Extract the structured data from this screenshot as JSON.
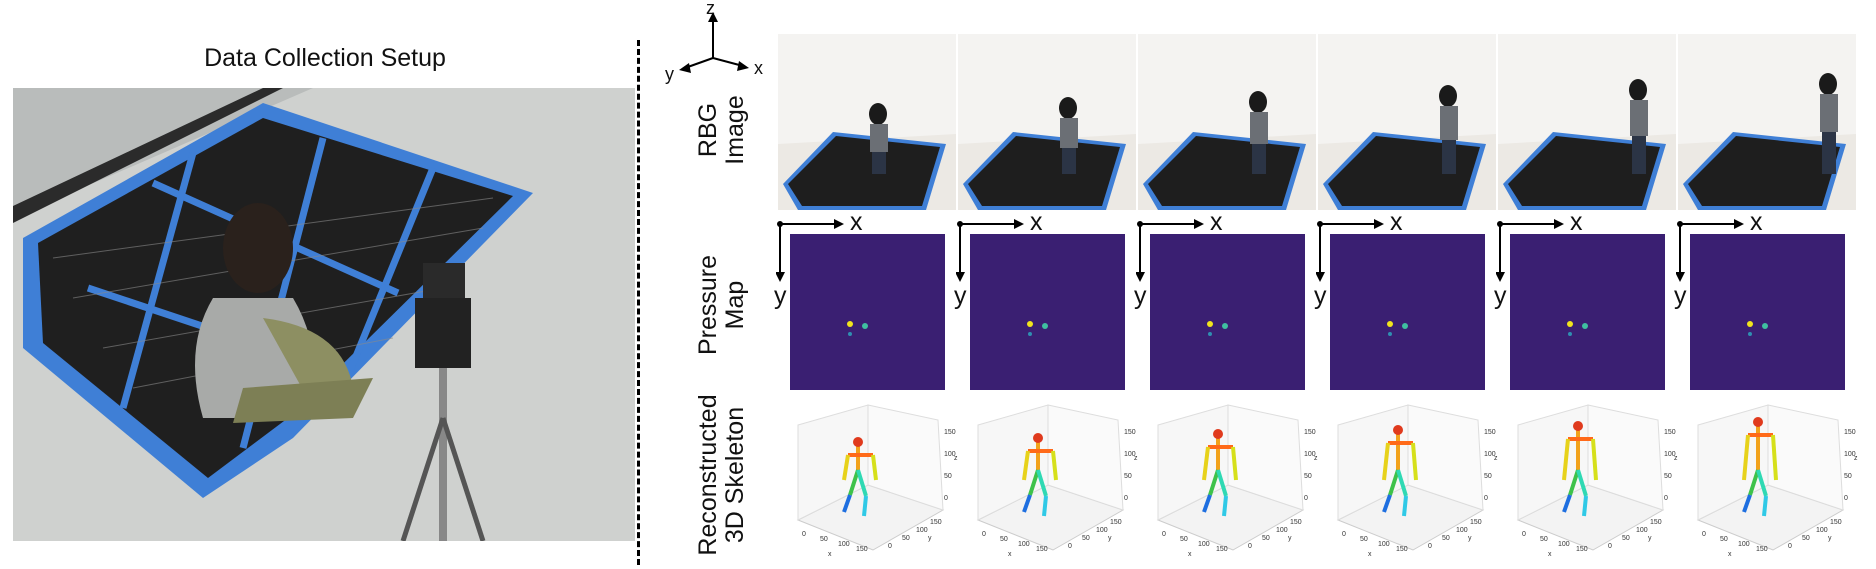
{
  "figure": {
    "left_title": "Data Collection Setup",
    "axes_3d": {
      "z": "z",
      "y": "y",
      "x": "x"
    },
    "row_labels": {
      "rgb": [
        "RBG",
        "Image"
      ],
      "pressure": [
        "Pressure",
        "Map"
      ],
      "skeleton": [
        "Reconstructed",
        "3D Skeleton"
      ]
    },
    "pressure_axes": {
      "x": "x",
      "y": "y"
    },
    "frame_count": 6,
    "skeleton_axes": {
      "x_ticks": [
        "0",
        "50",
        "100",
        "150"
      ],
      "y_ticks": [
        "0",
        "50",
        "100",
        "150"
      ],
      "z_ticks": [
        "0",
        "50",
        "100",
        "150"
      ],
      "x_label": "x",
      "y_label": "y",
      "z_label": "z"
    },
    "colors": {
      "mat_tape": "#3f7fd6",
      "pressure_bg": "#3a1f72",
      "pressure_hot": "#f1e51d"
    }
  }
}
